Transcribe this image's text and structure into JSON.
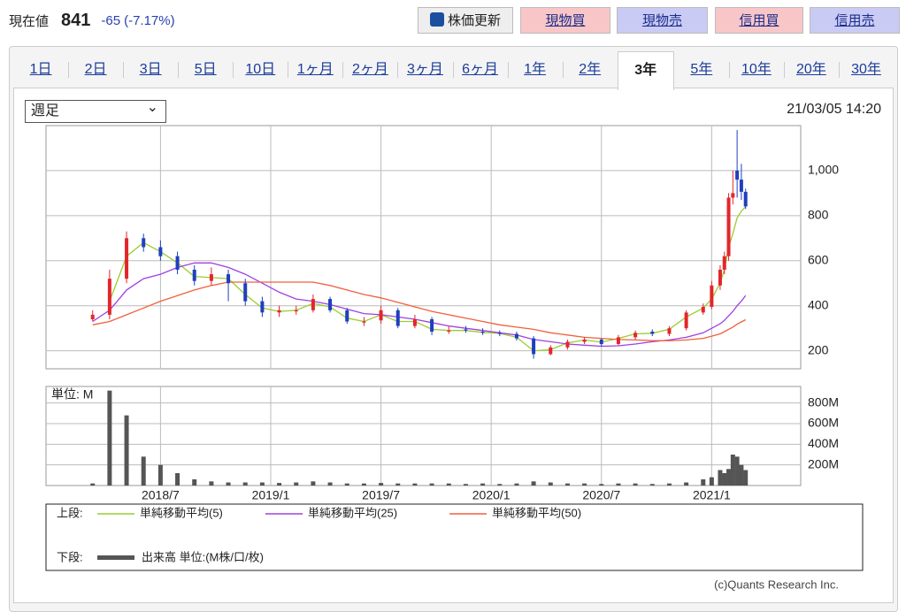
{
  "header": {
    "label": "現在値",
    "price": "841",
    "change": "-65",
    "change_pct": "(-7.17%)",
    "buttons": [
      "株価更新",
      "現物買",
      "現物売",
      "信用買",
      "信用売"
    ]
  },
  "tabs": [
    "1日",
    "2日",
    "3日",
    "5日",
    "10日",
    "1ヶ月",
    "2ヶ月",
    "3ヶ月",
    "6ヶ月",
    "1年",
    "2年",
    "3年",
    "5年",
    "10年",
    "20年",
    "30年"
  ],
  "active_tab": "3年",
  "period_select": "週足",
  "timestamp": "21/03/05 14:20",
  "chart_data": [
    {
      "type": "candlestick",
      "x": [
        0,
        4,
        8,
        12,
        16,
        20,
        24,
        28,
        32,
        36,
        40,
        44,
        48,
        52,
        56,
        60,
        64,
        68,
        72,
        76,
        80,
        84,
        88,
        92,
        96,
        100,
        104,
        108,
        112,
        116,
        120,
        124,
        128,
        132,
        136,
        140,
        144,
        146,
        148,
        149,
        150,
        151,
        152,
        153,
        154
      ],
      "open": [
        340,
        360,
        520,
        700,
        660,
        620,
        560,
        510,
        540,
        500,
        420,
        370,
        375,
        380,
        430,
        380,
        325,
        335,
        380,
        310,
        340,
        285,
        295,
        285,
        280,
        275,
        255,
        185,
        215,
        240,
        250,
        230,
        260,
        285,
        275,
        300,
        370,
        395,
        490,
        560,
        620,
        880,
        1000,
        960,
        906
      ],
      "high": [
        380,
        560,
        730,
        720,
        690,
        640,
        580,
        570,
        560,
        520,
        440,
        400,
        400,
        450,
        440,
        390,
        350,
        400,
        390,
        360,
        350,
        310,
        310,
        300,
        290,
        285,
        265,
        225,
        250,
        260,
        255,
        270,
        290,
        295,
        310,
        380,
        410,
        510,
        580,
        640,
        900,
        1000,
        1180,
        1030,
        920
      ],
      "low": [
        330,
        340,
        500,
        640,
        600,
        540,
        490,
        490,
        420,
        400,
        350,
        350,
        360,
        370,
        370,
        320,
        310,
        320,
        300,
        300,
        270,
        275,
        280,
        270,
        265,
        245,
        165,
        180,
        205,
        230,
        220,
        225,
        250,
        265,
        265,
        290,
        360,
        385,
        470,
        540,
        600,
        850,
        880,
        870,
        830
      ],
      "close": [
        360,
        520,
        700,
        660,
        620,
        560,
        510,
        540,
        500,
        420,
        370,
        380,
        380,
        430,
        380,
        330,
        330,
        380,
        310,
        340,
        285,
        290,
        290,
        280,
        275,
        255,
        185,
        215,
        240,
        250,
        230,
        260,
        280,
        275,
        300,
        370,
        395,
        490,
        560,
        620,
        880,
        900,
        960,
        906,
        841
      ],
      "up_color": "#e3262b",
      "down_color": "#1f3fbf",
      "series": [
        {
          "name": "単純移動平均(5)",
          "color": "#9acd32",
          "values": [
            null,
            420,
            620,
            680,
            640,
            590,
            530,
            525,
            520,
            450,
            390,
            375,
            380,
            410,
            395,
            345,
            330,
            360,
            330,
            330,
            295,
            290,
            290,
            282,
            277,
            260,
            200,
            205,
            235,
            248,
            238,
            255,
            275,
            278,
            295,
            350,
            390,
            430,
            500,
            560,
            660,
            720,
            790,
            820,
            840
          ]
        },
        {
          "name": "単純移動平均(25)",
          "color": "#a040e0",
          "values": [
            330,
            380,
            470,
            520,
            540,
            570,
            590,
            590,
            570,
            540,
            500,
            460,
            430,
            420,
            405,
            385,
            365,
            360,
            350,
            340,
            325,
            310,
            300,
            290,
            280,
            270,
            250,
            240,
            230,
            225,
            220,
            222,
            230,
            240,
            248,
            260,
            280,
            300,
            320,
            335,
            355,
            375,
            400,
            420,
            445
          ]
        },
        {
          "name": "単純移動平均(50)",
          "color": "#f0603c",
          "values": [
            315,
            330,
            360,
            390,
            420,
            445,
            470,
            490,
            505,
            505,
            505,
            505,
            505,
            505,
            490,
            470,
            450,
            435,
            415,
            395,
            375,
            360,
            345,
            330,
            315,
            305,
            295,
            280,
            270,
            260,
            255,
            250,
            248,
            245,
            245,
            248,
            255,
            265,
            275,
            285,
            295,
            305,
            318,
            328,
            338
          ]
        }
      ],
      "xlim": [
        -11,
        167
      ],
      "ylim": [
        120,
        1200
      ],
      "yticks": [
        200,
        400,
        600,
        800,
        {
          "value": 1000,
          "label": "1,000"
        }
      ],
      "grid": true
    },
    {
      "type": "bar",
      "unit_label": "単位: M",
      "x": [
        0,
        4,
        8,
        12,
        16,
        20,
        24,
        28,
        32,
        36,
        40,
        44,
        48,
        52,
        56,
        60,
        64,
        68,
        72,
        76,
        80,
        84,
        88,
        92,
        96,
        100,
        104,
        108,
        112,
        116,
        120,
        124,
        128,
        132,
        136,
        140,
        144,
        146,
        148,
        149,
        150,
        151,
        152,
        153,
        154
      ],
      "series": [
        {
          "name": "出来高 単位:(M株/口/枚)",
          "color": "#555555",
          "values": [
            20,
            920,
            680,
            280,
            200,
            120,
            60,
            40,
            30,
            30,
            30,
            25,
            30,
            40,
            30,
            20,
            20,
            25,
            20,
            20,
            20,
            20,
            15,
            20,
            15,
            20,
            40,
            30,
            20,
            20,
            15,
            20,
            20,
            15,
            20,
            30,
            60,
            80,
            150,
            120,
            160,
            300,
            280,
            200,
            150
          ]
        }
      ],
      "xlim": [
        -11,
        167
      ],
      "ylim": [
        0,
        960
      ],
      "yticks": [
        {
          "value": 200,
          "label": "200M"
        },
        {
          "value": 400,
          "label": "400M"
        },
        {
          "value": 600,
          "label": "600M"
        },
        {
          "value": 800,
          "label": "800M"
        }
      ],
      "xticks": [
        {
          "value": 16,
          "label": "2018/7"
        },
        {
          "value": 42,
          "label": "2019/1"
        },
        {
          "value": 68,
          "label": "2019/7"
        },
        {
          "value": 94,
          "label": "2020/1"
        },
        {
          "value": 120,
          "label": "2020/7"
        },
        {
          "value": 146,
          "label": "2021/1"
        }
      ],
      "grid": true
    }
  ],
  "legend": {
    "upper_label": "上段:",
    "lower_label": "下段:"
  },
  "copyright": "(c)Quants Research Inc."
}
